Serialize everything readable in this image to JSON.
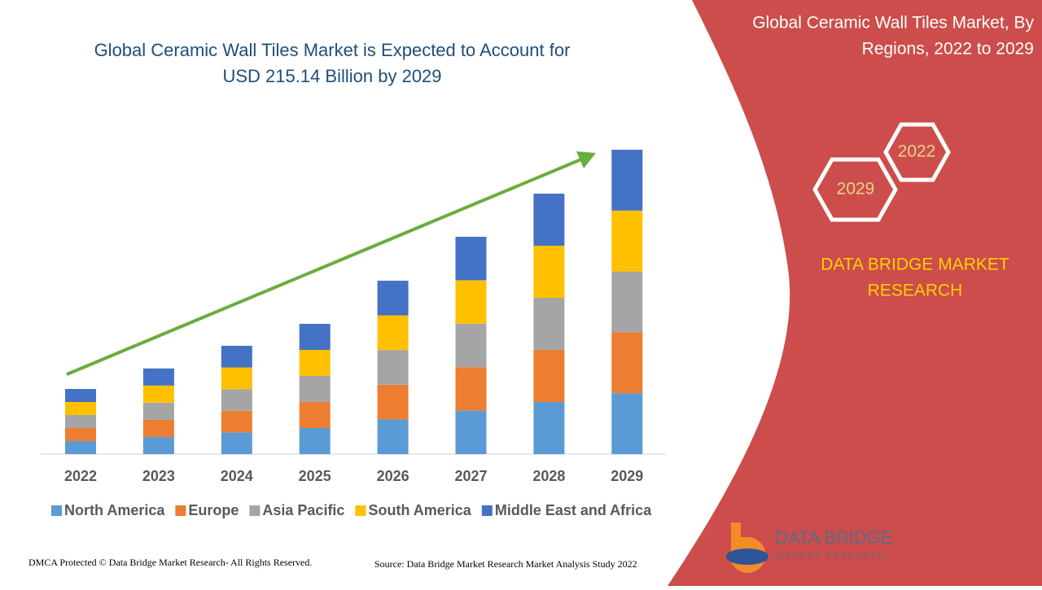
{
  "chart_data": {
    "type": "bar",
    "stacked": true,
    "title": [
      "Global Ceramic Wall Tiles Market is Expected to Account for",
      "USD 215.14 Billion by 2029"
    ],
    "categories": [
      "2022",
      "2023",
      "2024",
      "2025",
      "2026",
      "2027",
      "2028",
      "2029"
    ],
    "series": [
      {
        "name": "North America",
        "color": "#5b9bd5",
        "values": [
          9.2,
          12.1,
          15.3,
          18.4,
          24.5,
          30.7,
          36.8,
          43.0
        ]
      },
      {
        "name": "Europe",
        "color": "#ed7d31",
        "values": [
          9.2,
          12.1,
          15.3,
          18.4,
          24.5,
          30.7,
          36.8,
          43.0
        ]
      },
      {
        "name": "Asia Pacific",
        "color": "#a5a5a5",
        "values": [
          9.2,
          12.1,
          15.3,
          18.4,
          24.5,
          30.7,
          36.8,
          43.0
        ]
      },
      {
        "name": "South America",
        "color": "#ffc000",
        "values": [
          9.2,
          12.1,
          15.3,
          18.4,
          24.5,
          30.7,
          36.8,
          43.0
        ]
      },
      {
        "name": "Middle East and Africa",
        "color": "#4472c4",
        "values": [
          9.2,
          12.1,
          15.3,
          18.4,
          24.5,
          30.7,
          36.8,
          43.0
        ]
      }
    ]
  },
  "panel": {
    "title": [
      "Global Ceramic Wall Tiles Market, By",
      "Regions, 2022 to 2029"
    ],
    "hexagons": [
      "2022",
      "2029"
    ],
    "brand": [
      "DATA BRIDGE MARKET",
      "RESEARCH"
    ]
  },
  "logo": {
    "name": "DATA BRIDGE",
    "tagline": "MARKET RESEARCH"
  },
  "footer": {
    "copyright": "DMCA Protected © Data Bridge Market Research- All Rights Reserved.",
    "source": "Source: Data Bridge Market Research Market Analysis Study 2022"
  }
}
